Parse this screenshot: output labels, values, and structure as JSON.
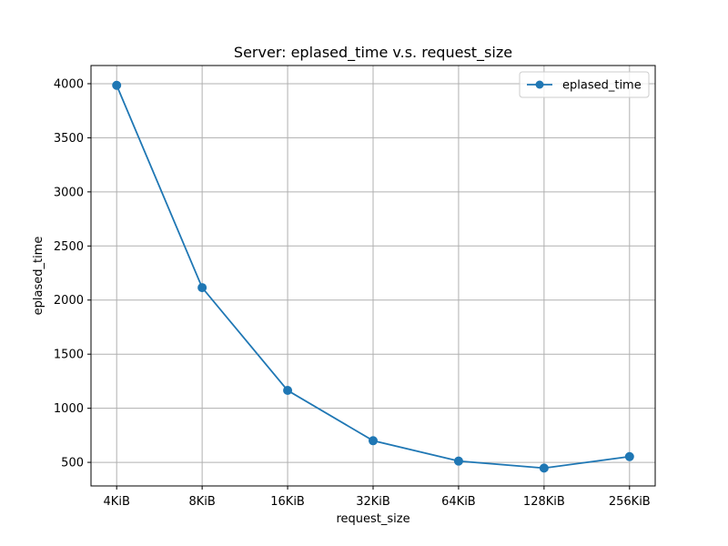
{
  "chart_data": {
    "type": "line",
    "title": "Server: eplased_time v.s. request_size",
    "xlabel": "request_size",
    "ylabel": "eplased_time",
    "categories": [
      "4KiB",
      "8KiB",
      "16KiB",
      "32KiB",
      "64KiB",
      "128KiB",
      "256KiB"
    ],
    "series": [
      {
        "name": "eplased_time",
        "values": [
          3985,
          2115,
          1165,
          700,
          512,
          447,
          553
        ],
        "color": "#1f77b4",
        "marker": "circle"
      }
    ],
    "ylim": [
      282,
      4168
    ],
    "yticks": [
      500,
      1000,
      1500,
      2000,
      2500,
      3000,
      3500,
      4000
    ],
    "grid": true,
    "legend_position": "top-right"
  }
}
